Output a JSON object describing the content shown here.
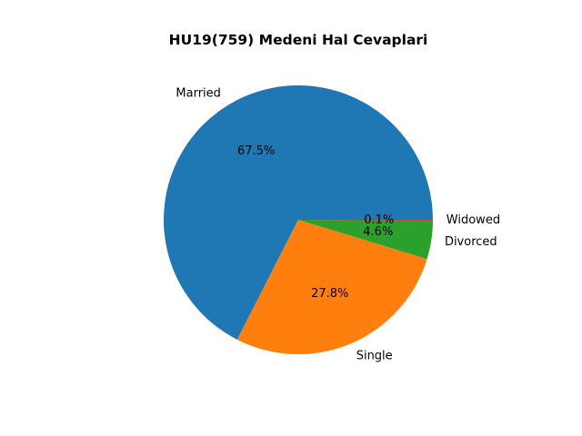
{
  "chart_data": {
    "type": "pie",
    "title": "HU19(759) Medeni Hal Cevaplari",
    "categories": [
      "Married",
      "Single",
      "Divorced",
      "Widowed"
    ],
    "values": [
      67.5,
      27.8,
      4.6,
      0.1
    ],
    "value_labels": [
      "67.5%",
      "27.8%",
      "4.6%",
      "0.1%"
    ],
    "colors": [
      "#1f77b4",
      "#ff7f0e",
      "#2ca02c",
      "#d62728"
    ],
    "start_angle": 0,
    "direction": "counterclockwise"
  }
}
